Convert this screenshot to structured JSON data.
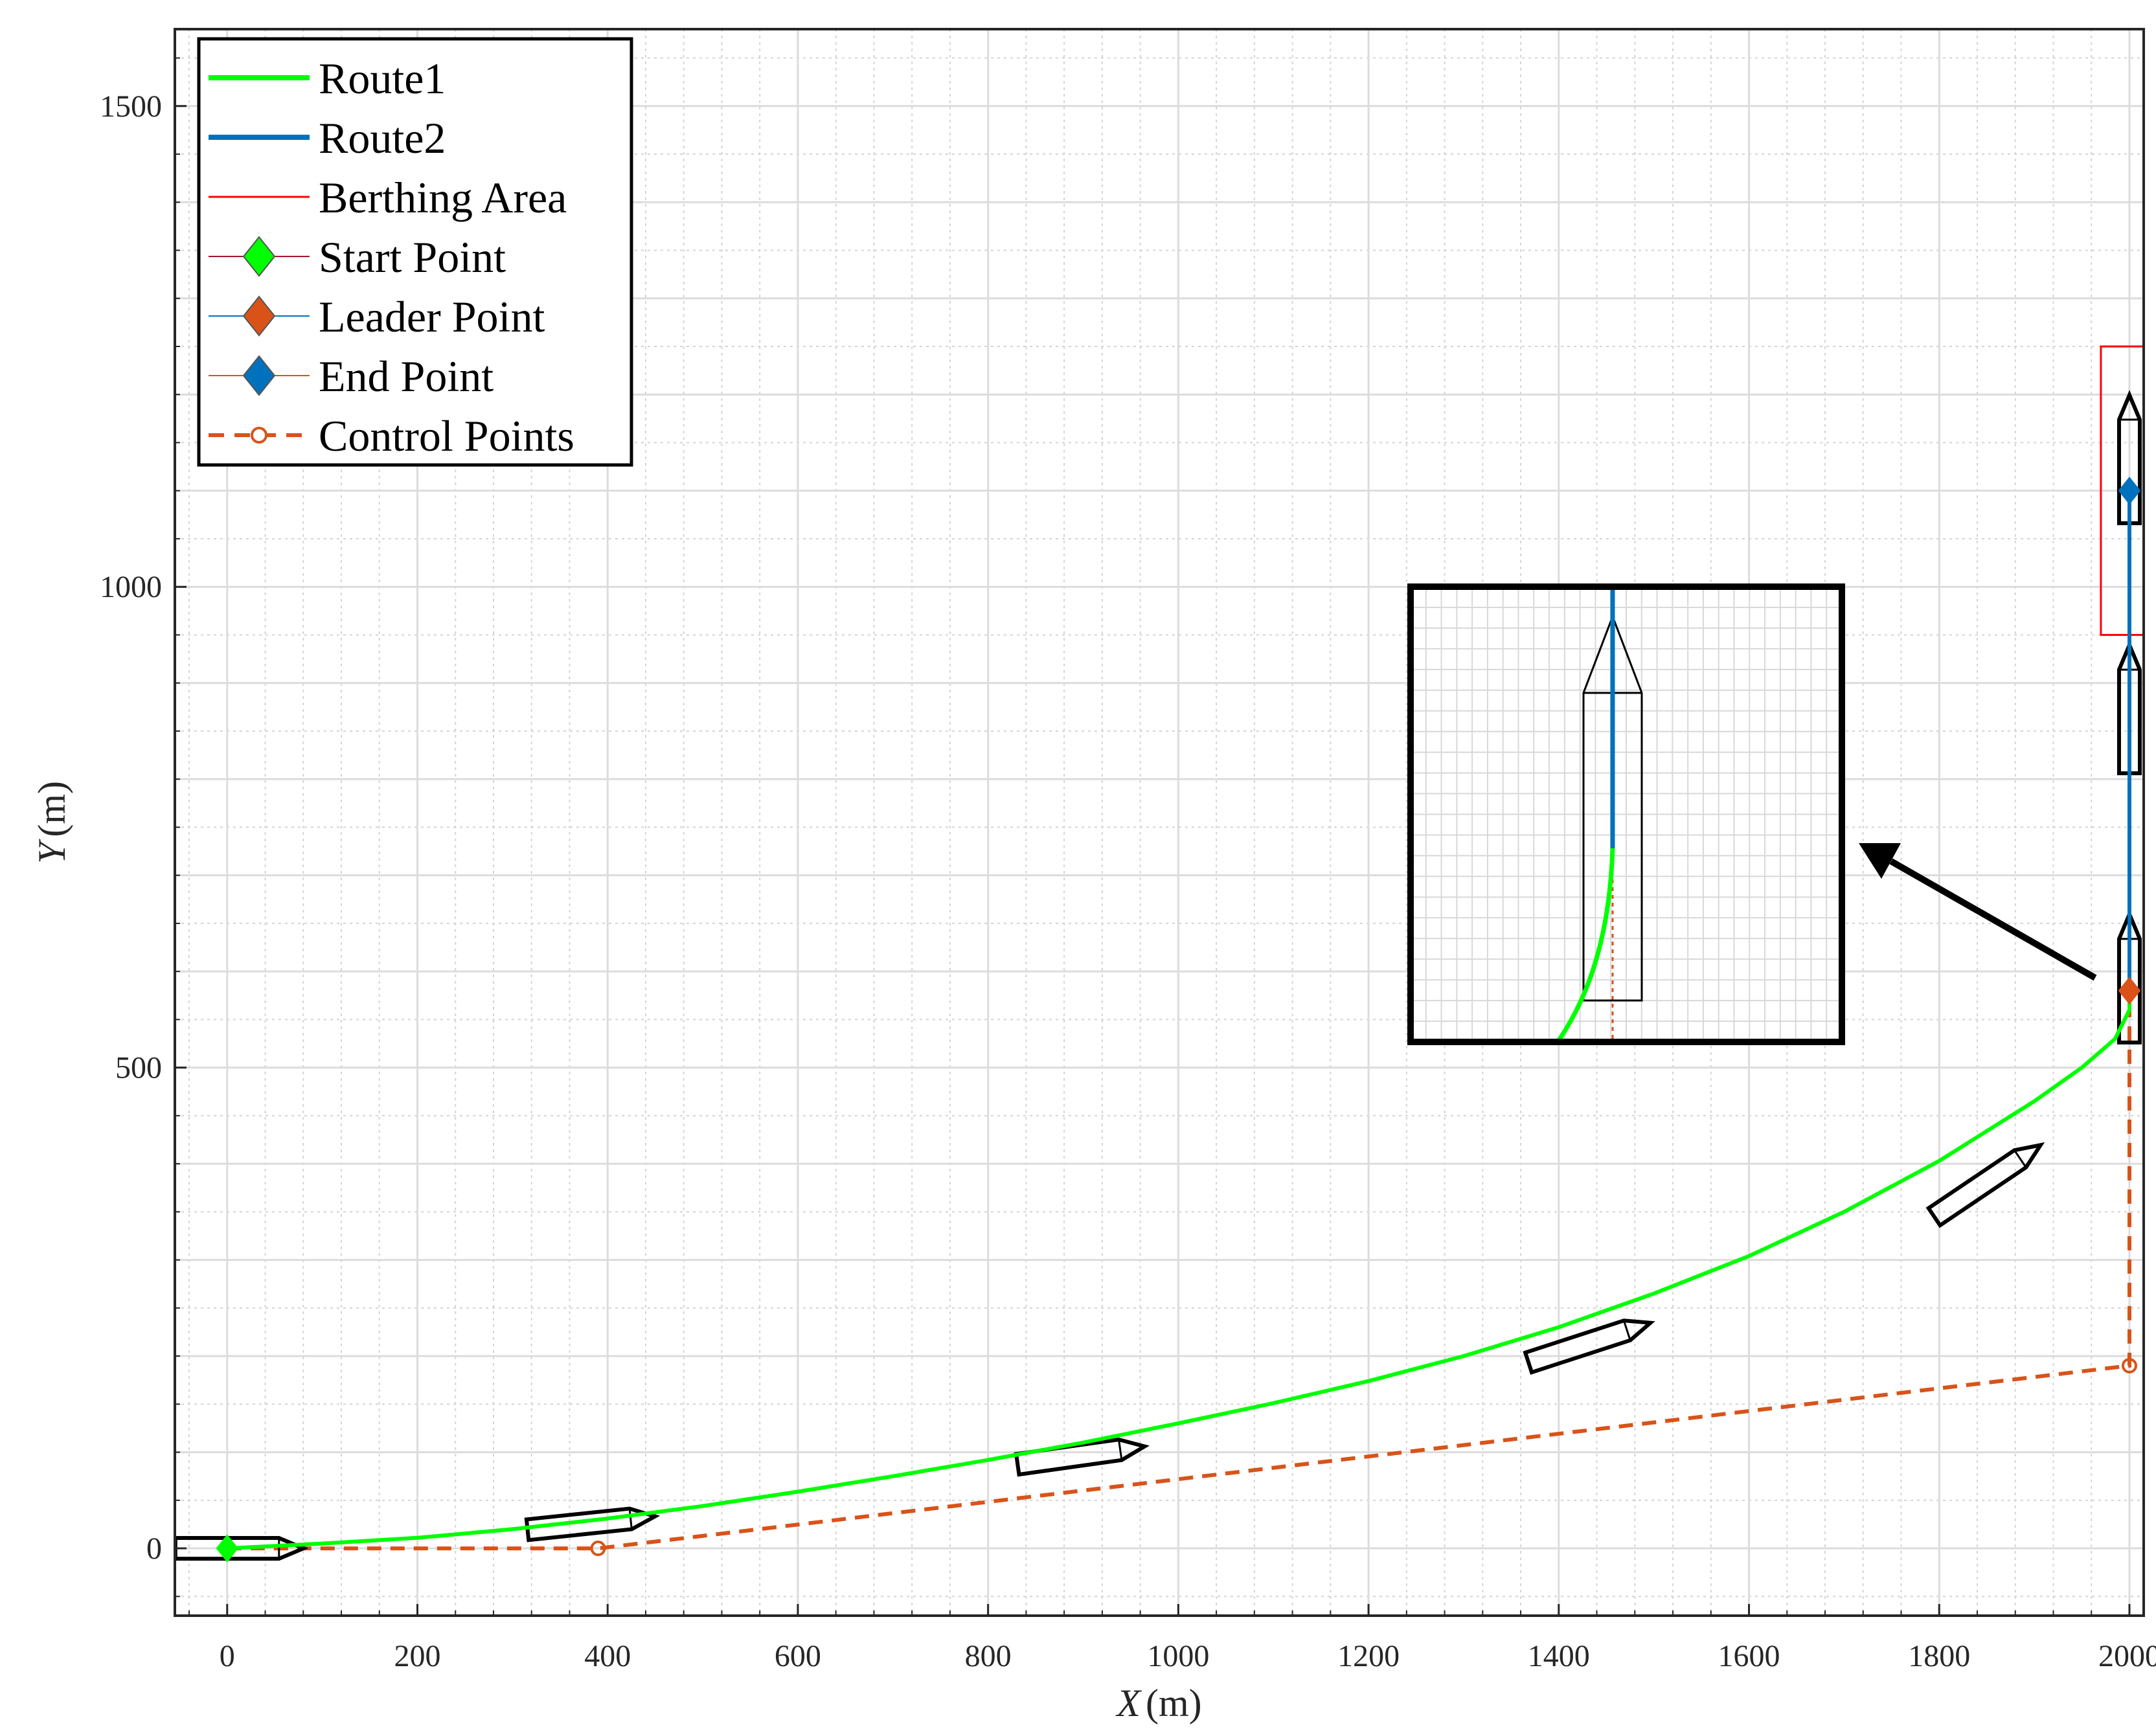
{
  "chart_data": {
    "type": "line",
    "xlabel_var": "X",
    "xlabel_unit": "(m)",
    "ylabel_var": "Y",
    "ylabel_unit": "(m)",
    "xlim": [
      -55,
      2015
    ],
    "ylim": [
      -70,
      1580
    ],
    "xticks": [
      0,
      200,
      400,
      600,
      800,
      1000,
      1200,
      1400,
      1600,
      1800,
      2000
    ],
    "yticks": [
      0,
      500,
      1000,
      1500
    ],
    "grid": true,
    "minor_grid": true,
    "legend_position": "top-left",
    "colors": {
      "route1": "#00ff00",
      "route2": "#0072bd",
      "berthing": "#ff0000",
      "start": "#00ff00",
      "leader": "#d95319",
      "end": "#0072bd",
      "control": "#d95319",
      "ship": "#000000"
    },
    "series": [
      {
        "name": "Route1",
        "kind": "line",
        "points": [
          [
            0,
            0
          ],
          [
            100,
            5
          ],
          [
            200,
            11
          ],
          [
            300,
            20
          ],
          [
            400,
            31
          ],
          [
            500,
            44
          ],
          [
            600,
            59
          ],
          [
            700,
            75
          ],
          [
            800,
            92
          ],
          [
            900,
            110
          ],
          [
            1000,
            130
          ],
          [
            1100,
            151
          ],
          [
            1200,
            174
          ],
          [
            1300,
            200
          ],
          [
            1400,
            230
          ],
          [
            1500,
            265
          ],
          [
            1600,
            304
          ],
          [
            1700,
            350
          ],
          [
            1800,
            403
          ],
          [
            1900,
            465
          ],
          [
            1950,
            500
          ],
          [
            1985,
            530
          ],
          [
            2000,
            560
          ],
          [
            2000,
            580
          ]
        ]
      },
      {
        "name": "Route2",
        "kind": "line",
        "points": [
          [
            2000,
            580
          ],
          [
            2000,
            1100
          ]
        ]
      },
      {
        "name": "Berthing Area",
        "kind": "rect",
        "x_range": [
          1970,
          2030
        ],
        "y_range": [
          950,
          1250
        ]
      },
      {
        "name": "Start Point",
        "kind": "marker",
        "points": [
          [
            0,
            0
          ]
        ]
      },
      {
        "name": "Leader Point",
        "kind": "marker",
        "points": [
          [
            2000,
            580
          ]
        ]
      },
      {
        "name": "End Point",
        "kind": "marker",
        "points": [
          [
            2000,
            1100
          ]
        ]
      },
      {
        "name": "Control Points",
        "kind": "dashed",
        "points": [
          [
            0,
            0
          ],
          [
            390,
            0
          ],
          [
            2000,
            190
          ],
          [
            2000,
            580
          ]
        ]
      }
    ],
    "ships": [
      {
        "x": 0,
        "y": 0,
        "angle": 0
      },
      {
        "x": 370,
        "y": 25,
        "angle": 6
      },
      {
        "x": 885,
        "y": 95,
        "angle": 8
      },
      {
        "x": 1420,
        "y": 210,
        "angle": 18
      },
      {
        "x": 1840,
        "y": 375,
        "angle": 34
      },
      {
        "x": 2000,
        "y": 580,
        "angle": 90
      },
      {
        "x": 2000,
        "y": 860,
        "angle": 90
      },
      {
        "x": 2000,
        "y": 1120,
        "angle": 90
      }
    ],
    "inset": {
      "has_grid": true
    }
  }
}
